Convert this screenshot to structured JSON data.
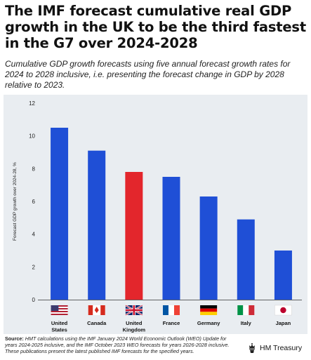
{
  "title": "The IMF forecast cumulative real GDP growth in the UK to be the third fastest in the G7 over 2024-2028",
  "subtitle": "Cumulative GDP growth forecasts using five annual forecast growth rates for 2024 to 2028 inclusive, i.e. presenting the forecast change in GDP by 2028 relative to 2023.",
  "source_label": "Source:",
  "source_text": "HMT calculations using the IMF January 2024 World Economic Outlook (WEO) Update for years 2024-2025 inclusive, and the IMF October 2023 WEO forecasts for years 2026-2028 inclusive. These publications present the latest published IMF forecasts for the specified years.",
  "logo_text": "HM Treasury",
  "logo_icon": "royal-crest-icon",
  "colors": {
    "bar": "#1f4fd6",
    "highlight": "#e3262c",
    "panel": "#e9edf1"
  },
  "chart_data": {
    "type": "bar",
    "categories": [
      "United States",
      "Canada",
      "United Kingdom",
      "France",
      "Germany",
      "Italy",
      "Japan"
    ],
    "category_lines": [
      [
        "United",
        "States"
      ],
      [
        "Canada"
      ],
      [
        "United",
        "Kingdom"
      ],
      [
        "France"
      ],
      [
        "Germany"
      ],
      [
        "Italy"
      ],
      [
        "Japan"
      ]
    ],
    "flags": [
      "us",
      "ca",
      "gb",
      "fr",
      "de",
      "it",
      "jp"
    ],
    "values": [
      10.5,
      9.1,
      7.8,
      7.5,
      6.3,
      4.9,
      3.0
    ],
    "highlight": "United Kingdom",
    "title": "",
    "xlabel": "",
    "ylabel": "Forecast GDP growth over 2024-28, %",
    "ylim": [
      0,
      12
    ],
    "yticks": [
      0,
      2,
      4,
      6,
      8,
      10,
      12
    ],
    "grid": false,
    "legend": "none"
  }
}
